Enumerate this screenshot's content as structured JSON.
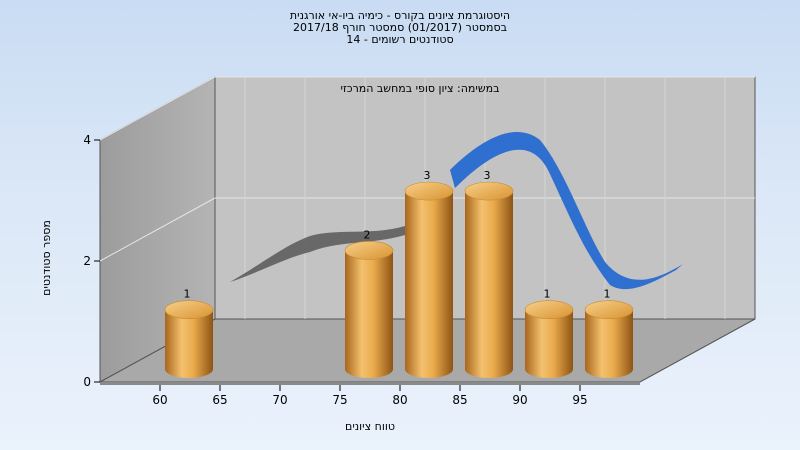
{
  "chart_data": {
    "type": "bar",
    "title_lines": [
      "היסטוגרמת ציונים בקורס - כימיה ביו-אי אורגנית",
      "בסמסטר  (01/2017)  סמסטר חורף 2017/18",
      "סטודנטים רשומים - 14"
    ],
    "annotation": "במשימה: ציון סופי במחשב המרכזי",
    "xlabel": "טווח ציונים",
    "ylabel": "מספר סטודנטים",
    "categories": [
      "60",
      "65",
      "70",
      "75",
      "80",
      "85",
      "90",
      "95"
    ],
    "y_ticks": [
      "0",
      "2",
      "4"
    ],
    "ylim": [
      0,
      4
    ],
    "series": [
      {
        "values": [
          1,
          0,
          0,
          2,
          3,
          3,
          1,
          1
        ],
        "data_labels": [
          "1",
          "",
          "",
          "2",
          "3",
          "3",
          "1",
          "1"
        ],
        "color": "#e3a445"
      }
    ],
    "trend_colors": {
      "back": "#5e5e5e",
      "front": "#2f6fcf"
    },
    "grid": true,
    "style": "3d"
  }
}
